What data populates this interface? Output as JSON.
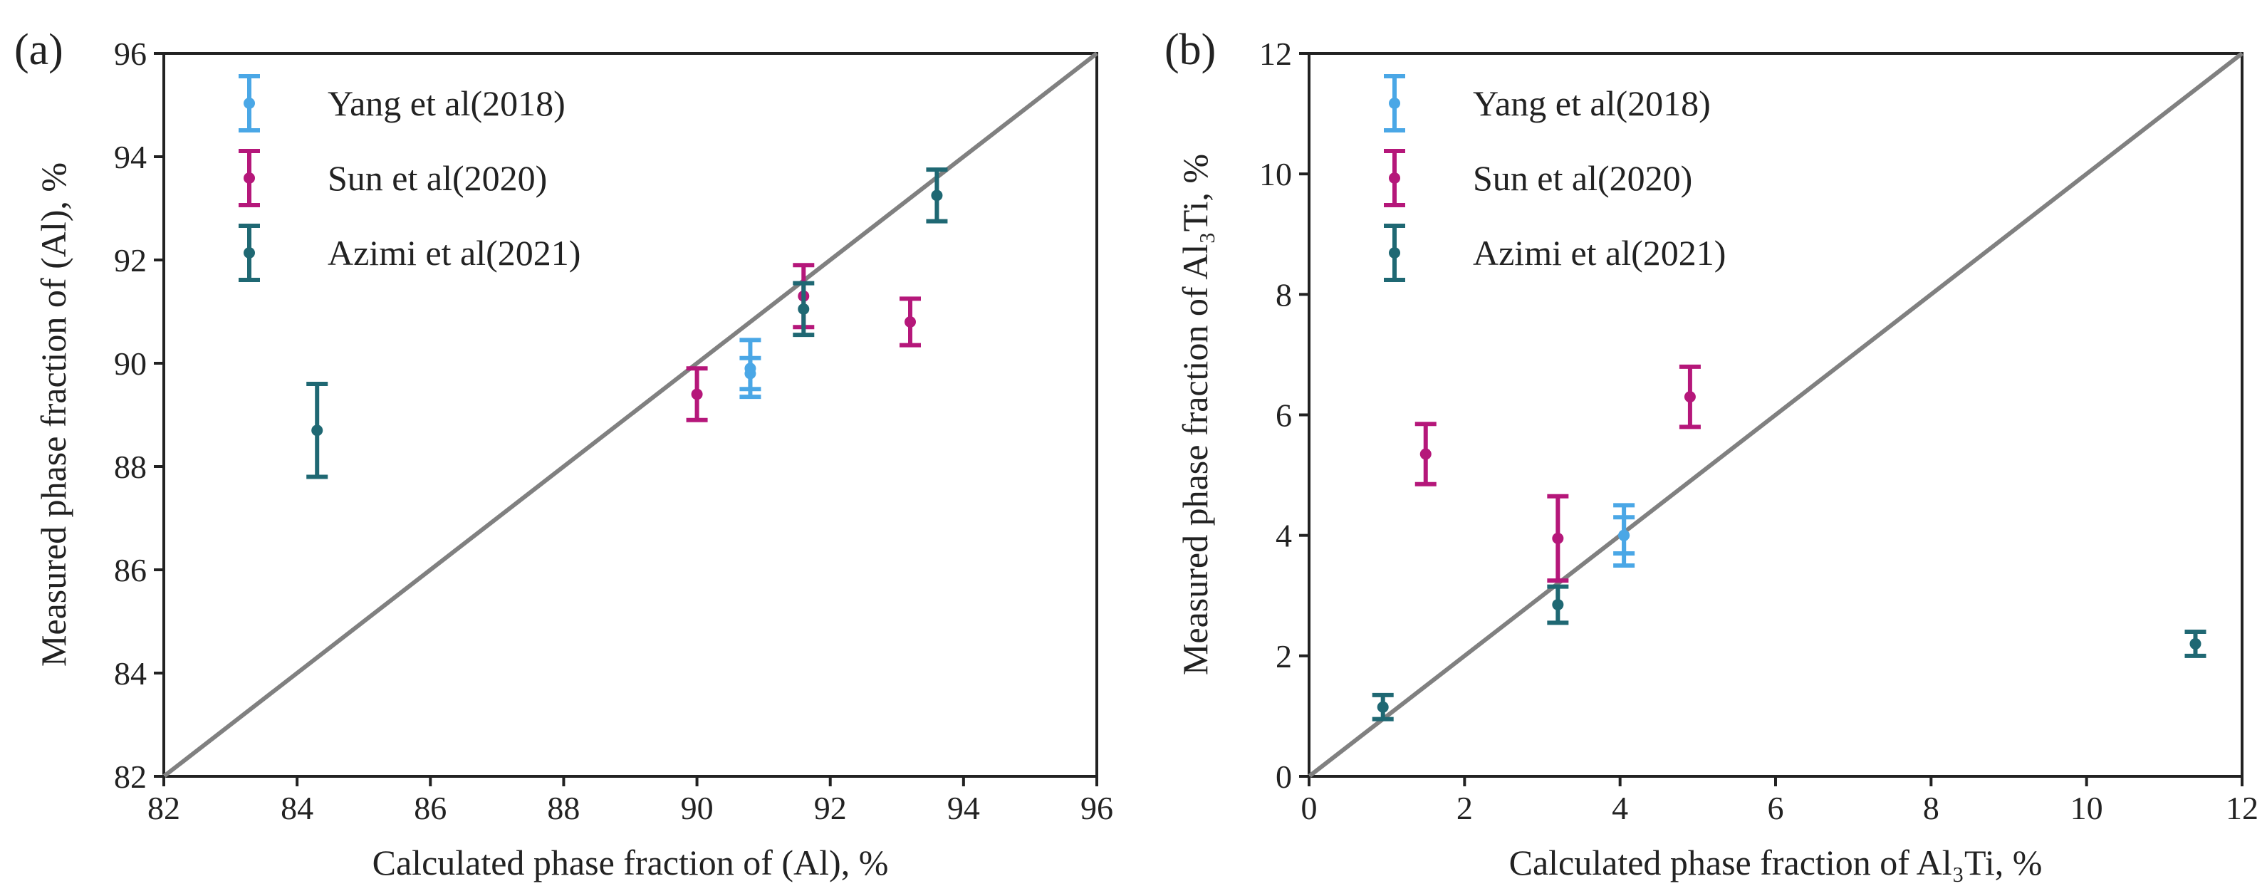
{
  "colors": {
    "yang": "#4aa7e6",
    "sun": "#b5177a",
    "azimi": "#1f6873",
    "diagonal": "#808080",
    "axes": "#222222"
  },
  "chart_data": [
    {
      "panel": "(a)",
      "type": "scatter",
      "title": "",
      "xlabel": "Calculated phase fraction of (Al), %",
      "ylabel": "Measured phase fraction of (Al), %",
      "xlim": [
        82,
        96
      ],
      "ylim": [
        82,
        96
      ],
      "xticks": [
        82,
        84,
        86,
        88,
        90,
        92,
        94,
        96
      ],
      "yticks": [
        82,
        84,
        86,
        88,
        90,
        92,
        94,
        96
      ],
      "reference_line": "y = x",
      "legend_position": "top-left",
      "series": [
        {
          "key": "yang",
          "name": "Yang et al(2018)",
          "color": "#4aa7e6",
          "points": [
            {
              "x": 90.8,
              "y": 89.9,
              "err": 0.55
            },
            {
              "x": 90.8,
              "y": 89.8,
              "err": 0.3
            }
          ]
        },
        {
          "key": "sun",
          "name": "Sun et al(2020)",
          "color": "#b5177a",
          "points": [
            {
              "x": 90.0,
              "y": 89.4,
              "err": 0.5
            },
            {
              "x": 91.6,
              "y": 91.3,
              "err": 0.6
            },
            {
              "x": 93.2,
              "y": 90.8,
              "err": 0.45
            }
          ]
        },
        {
          "key": "azimi",
          "name": "Azimi et al(2021)",
          "color": "#1f6873",
          "points": [
            {
              "x": 84.3,
              "y": 88.7,
              "err": 0.9
            },
            {
              "x": 91.6,
              "y": 91.05,
              "err": 0.5
            },
            {
              "x": 93.6,
              "y": 93.25,
              "err": 0.5
            }
          ]
        }
      ]
    },
    {
      "panel": "(b)",
      "type": "scatter",
      "title": "",
      "xlabel": "Calculated phase fraction of Al₃Ti, %",
      "ylabel": "Measured phase fraction of Al₃Ti, %",
      "xlim": [
        0,
        12
      ],
      "ylim": [
        0,
        12
      ],
      "xticks": [
        0,
        2,
        4,
        6,
        8,
        10,
        12
      ],
      "yticks": [
        0,
        2,
        4,
        6,
        8,
        10,
        12
      ],
      "reference_line": "y = x",
      "legend_position": "top-left",
      "series": [
        {
          "key": "yang",
          "name": "Yang et al(2018)",
          "color": "#4aa7e6",
          "points": [
            {
              "x": 4.05,
              "y": 4.0,
              "err": 0.5
            },
            {
              "x": 4.05,
              "y": 4.0,
              "err": 0.3
            }
          ]
        },
        {
          "key": "sun",
          "name": "Sun et al(2020)",
          "color": "#b5177a",
          "points": [
            {
              "x": 1.5,
              "y": 5.35,
              "err": 0.5
            },
            {
              "x": 3.2,
              "y": 3.95,
              "err": 0.7
            },
            {
              "x": 4.9,
              "y": 6.3,
              "err": 0.5
            }
          ]
        },
        {
          "key": "azimi",
          "name": "Azimi et al(2021)",
          "color": "#1f6873",
          "points": [
            {
              "x": 0.95,
              "y": 1.15,
              "err": 0.2
            },
            {
              "x": 3.2,
              "y": 2.85,
              "err": 0.3
            },
            {
              "x": 11.4,
              "y": 2.2,
              "err": 0.2
            }
          ]
        }
      ]
    }
  ]
}
